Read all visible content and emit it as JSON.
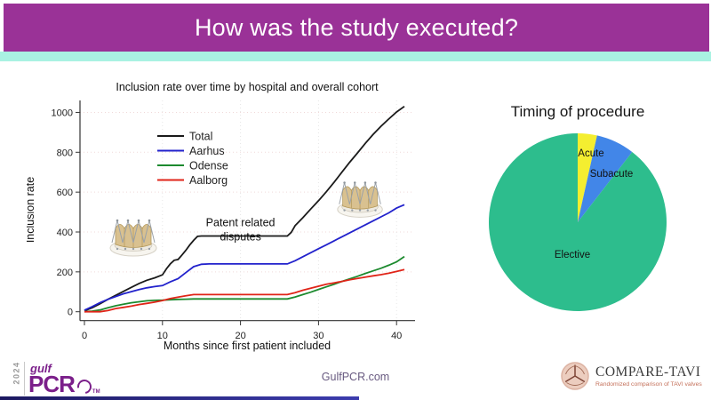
{
  "slide": {
    "header": {
      "title": "How was the study executed?"
    },
    "colors": {
      "header_bar": "#9a3297",
      "accent_strip": "#a9f2e2",
      "bottom_bar": "#3c3cae"
    },
    "footer": {
      "gulfpcr": {
        "year": "2024",
        "gulf": "gulf",
        "pcr": "PCR",
        "tm": "TM"
      },
      "website": "GulfPCR.com",
      "comparetavi": {
        "name": "COMPARE-TAVI",
        "subtitle": "Randomized comparison of TAVI valves"
      }
    }
  },
  "chart_data": [
    {
      "type": "line",
      "title": "Inclusion rate over time by hospital and overall cohort",
      "xlabel": "Months since first patient included",
      "ylabel": "Inclusion rate",
      "xlim": [
        0,
        42
      ],
      "ylim": [
        0,
        1050
      ],
      "x_ticks": [
        0,
        10,
        20,
        30,
        40
      ],
      "y_ticks": [
        0,
        200,
        400,
        600,
        800,
        1000
      ],
      "grid": "dotted",
      "legend_position": "inside-upper-left",
      "annotation": {
        "lines": [
          "Patent related",
          "disputes"
        ],
        "x": 20,
        "y": 430
      },
      "series": [
        {
          "name": "Total",
          "color": "#1a1a1a",
          "points": [
            [
              0,
              5
            ],
            [
              1,
              20
            ],
            [
              2,
              40
            ],
            [
              3,
              62
            ],
            [
              4,
              82
            ],
            [
              5,
              102
            ],
            [
              6,
              122
            ],
            [
              7,
              142
            ],
            [
              8,
              158
            ],
            [
              9,
              170
            ],
            [
              10,
              185
            ],
            [
              10.5,
              215
            ],
            [
              11,
              240
            ],
            [
              11.5,
              258
            ],
            [
              12,
              262
            ],
            [
              12.5,
              285
            ],
            [
              13,
              308
            ],
            [
              13.5,
              335
            ],
            [
              14,
              358
            ],
            [
              14.5,
              378
            ],
            [
              15,
              380
            ],
            [
              26,
              380
            ],
            [
              26.5,
              398
            ],
            [
              27,
              432
            ],
            [
              28,
              472
            ],
            [
              29,
              515
            ],
            [
              30,
              557
            ],
            [
              31,
              602
            ],
            [
              32,
              650
            ],
            [
              33,
              700
            ],
            [
              34,
              750
            ],
            [
              35,
              797
            ],
            [
              36,
              845
            ],
            [
              37,
              890
            ],
            [
              38,
              930
            ],
            [
              39,
              967
            ],
            [
              40,
              1002
            ],
            [
              41,
              1030
            ]
          ]
        },
        {
          "name": "Aarhus",
          "color": "#2222cc",
          "points": [
            [
              0,
              8
            ],
            [
              1,
              26
            ],
            [
              2,
              46
            ],
            [
              3,
              62
            ],
            [
              4,
              76
            ],
            [
              5,
              90
            ],
            [
              6,
              101
            ],
            [
              7,
              111
            ],
            [
              8,
              120
            ],
            [
              9,
              126
            ],
            [
              10,
              131
            ],
            [
              11,
              150
            ],
            [
              12,
              166
            ],
            [
              13,
              196
            ],
            [
              14,
              226
            ],
            [
              15,
              238
            ],
            [
              16,
              240
            ],
            [
              26,
              240
            ],
            [
              27,
              256
            ],
            [
              28,
              276
            ],
            [
              29,
              296
            ],
            [
              30,
              316
            ],
            [
              31,
              336
            ],
            [
              32,
              356
            ],
            [
              33,
              376
            ],
            [
              34,
              396
            ],
            [
              35,
              416
            ],
            [
              36,
              436
            ],
            [
              37,
              456
            ],
            [
              38,
              476
            ],
            [
              39,
              496
            ],
            [
              40,
              520
            ],
            [
              41,
              537
            ]
          ]
        },
        {
          "name": "Odense",
          "color": "#1c8a2e",
          "points": [
            [
              0,
              0
            ],
            [
              1,
              3
            ],
            [
              2,
              9
            ],
            [
              3,
              20
            ],
            [
              4,
              30
            ],
            [
              5,
              38
            ],
            [
              6,
              45
            ],
            [
              7,
              50
            ],
            [
              8,
              55
            ],
            [
              9,
              57
            ],
            [
              10,
              58
            ],
            [
              11,
              60
            ],
            [
              12,
              62
            ],
            [
              13,
              63
            ],
            [
              14,
              64
            ],
            [
              26,
              64
            ],
            [
              27,
              74
            ],
            [
              28,
              86
            ],
            [
              29,
              98
            ],
            [
              30,
              112
            ],
            [
              31,
              125
            ],
            [
              32,
              138
            ],
            [
              33,
              152
            ],
            [
              34,
              165
            ],
            [
              35,
              178
            ],
            [
              36,
              192
            ],
            [
              37,
              205
            ],
            [
              38,
              218
            ],
            [
              39,
              233
            ],
            [
              40,
              250
            ],
            [
              41,
              277
            ]
          ]
        },
        {
          "name": "Aalborg",
          "color": "#e02418",
          "points": [
            [
              0,
              0
            ],
            [
              2,
              0
            ],
            [
              3,
              6
            ],
            [
              4,
              16
            ],
            [
              5,
              22
            ],
            [
              6,
              28
            ],
            [
              7,
              36
            ],
            [
              8,
              42
            ],
            [
              9,
              48
            ],
            [
              10,
              56
            ],
            [
              11,
              66
            ],
            [
              12,
              73
            ],
            [
              13,
              80
            ],
            [
              14,
              86
            ],
            [
              26,
              86
            ],
            [
              27,
              96
            ],
            [
              28,
              108
            ],
            [
              29,
              118
            ],
            [
              30,
              128
            ],
            [
              31,
              138
            ],
            [
              32,
              145
            ],
            [
              33,
              152
            ],
            [
              34,
              160
            ],
            [
              35,
              167
            ],
            [
              36,
              174
            ],
            [
              37,
              180
            ],
            [
              38,
              186
            ],
            [
              39,
              193
            ],
            [
              40,
              202
            ],
            [
              41,
              212
            ]
          ]
        }
      ]
    },
    {
      "type": "pie",
      "title": "Timing of procedure",
      "labels": [
        "Acute",
        "Subacute",
        "Elective"
      ],
      "values": [
        3.5,
        7,
        89.5
      ],
      "colors": [
        "#f4ee30",
        "#4286e8",
        "#2dbd8d"
      ],
      "start_angle": "top",
      "direction": "clockwise"
    }
  ]
}
